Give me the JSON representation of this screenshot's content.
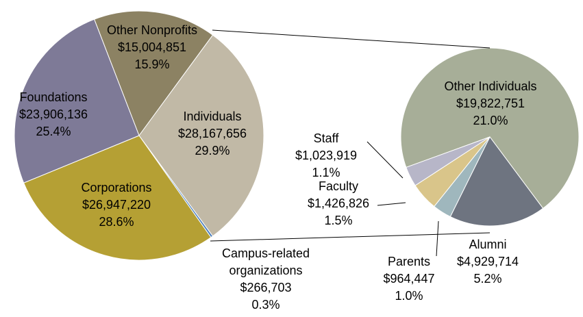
{
  "chart_data": [
    {
      "type": "pie",
      "categories": [
        "Other Nonprofits",
        "Individuals",
        "Campus-related organizations",
        "Corporations",
        "Foundations"
      ],
      "values": [
        15004851,
        28167656,
        266703,
        26947220,
        23906136
      ],
      "value_labels": [
        "$15,004,851",
        "$28,167,656",
        "$266,703",
        "$26,947,220",
        "$23,906,136"
      ],
      "percent_values": [
        15.9,
        29.9,
        0.3,
        28.6,
        25.4
      ],
      "percent_labels": [
        "15.9%",
        "29.9%",
        "0.3%",
        "28.6%",
        "25.4%"
      ],
      "colors": [
        "#8c8263",
        "#c1b9a6",
        "#4f81bd",
        "#b5a034",
        "#7e7a97"
      ]
    },
    {
      "type": "pie",
      "categories": [
        "Other Individuals",
        "Alumni",
        "Parents",
        "Faculty",
        "Staff"
      ],
      "values": [
        19822751,
        4929714,
        964447,
        1426826,
        1023919
      ],
      "value_labels": [
        "$19,822,751",
        "$4,929,714",
        "$964,447",
        "$1,426,826",
        "$1,023,919"
      ],
      "percent_values": [
        21.0,
        5.2,
        1.0,
        1.5,
        1.1
      ],
      "percent_labels": [
        "21.0%",
        "5.2%",
        "1.0%",
        "1.5%",
        "1.1%"
      ],
      "colors": [
        "#a7ae98",
        "#6e7480",
        "#9fb7bd",
        "#d9c58a",
        "#b7b6c8"
      ]
    }
  ]
}
